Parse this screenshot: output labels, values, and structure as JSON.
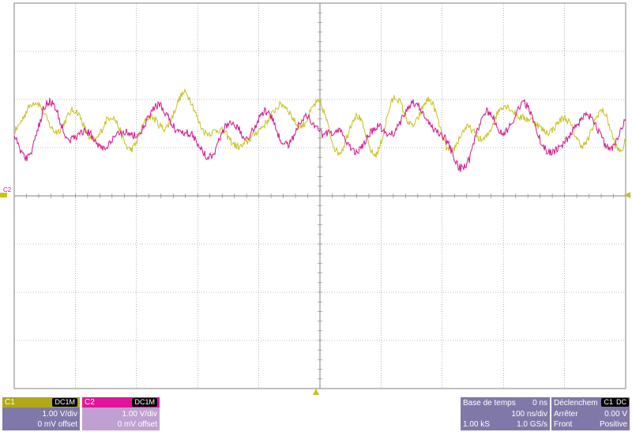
{
  "channels": [
    {
      "label": "C1",
      "coupling": "DC1M",
      "scale": "1.00 V/div",
      "offset": "0 mV offset",
      "color": "#c8c020",
      "header_color": "#b0a818",
      "panel_color": "#8078a8"
    },
    {
      "label": "C2",
      "coupling": "DC1M",
      "scale": "1.00 V/div",
      "offset": "0 mV offset",
      "color": "#d4168c",
      "header_color": "#e0169a",
      "panel_color": "#c0a0d0"
    }
  ],
  "left_marker_label": "C2",
  "timebase": {
    "title": "Base de temps",
    "delay": "0 ns",
    "scale": "100 ns/div",
    "samples": "1.00 kS",
    "rate": "1.0 GS/s"
  },
  "trigger": {
    "title": "Déclenchem",
    "source_badge": "C1",
    "coupling_badge": "DC",
    "mode": "Arrêter",
    "level": "0.00 V",
    "type": "Front",
    "slope": "Positive"
  },
  "colors": {
    "grid": "#808080",
    "background": "#ffffff",
    "marker": "#c8c020"
  }
}
